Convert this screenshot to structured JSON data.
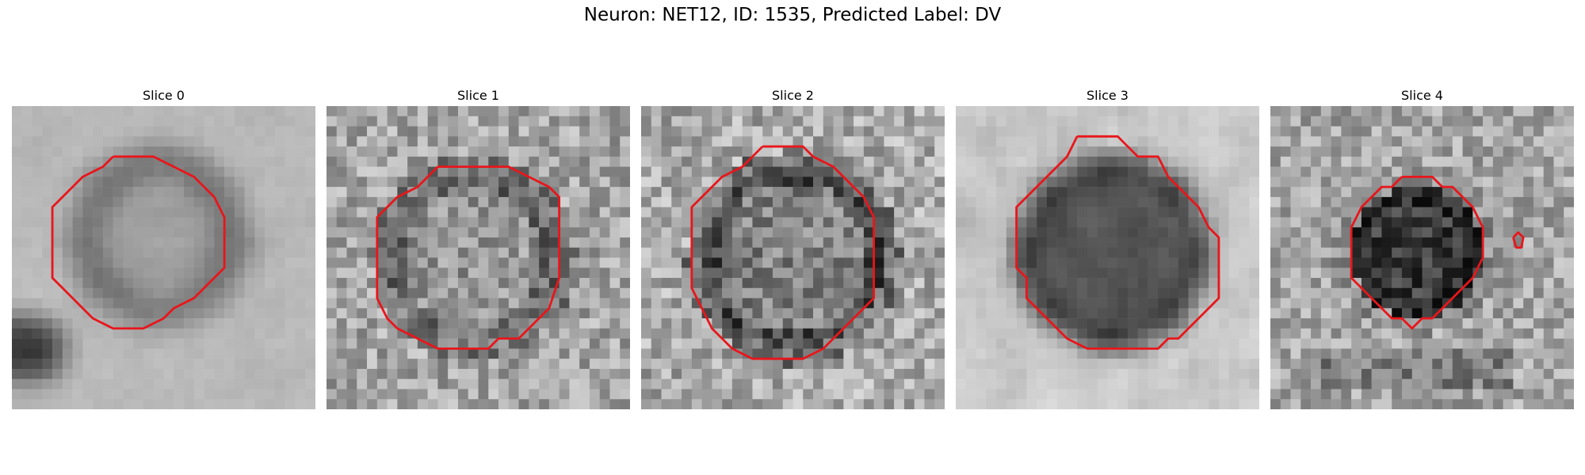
{
  "figure": {
    "title": "Neuron: NET12, ID: 1535, Predicted Label: DV"
  },
  "panels": [
    {
      "title": "Slice 0",
      "image": "blurred-grayscale-cell-with-red-outline"
    },
    {
      "title": "Slice 1",
      "image": "noisy-grayscale-cell-with-red-outline"
    },
    {
      "title": "Slice 2",
      "image": "noisy-grayscale-cell-with-red-outline"
    },
    {
      "title": "Slice 3",
      "image": "dark-grayscale-cell-with-red-outline"
    },
    {
      "title": "Slice 4",
      "image": "dark-grayscale-cell-with-red-outline"
    }
  ],
  "colors": {
    "contour": "#e8161b",
    "background": "#ffffff"
  }
}
